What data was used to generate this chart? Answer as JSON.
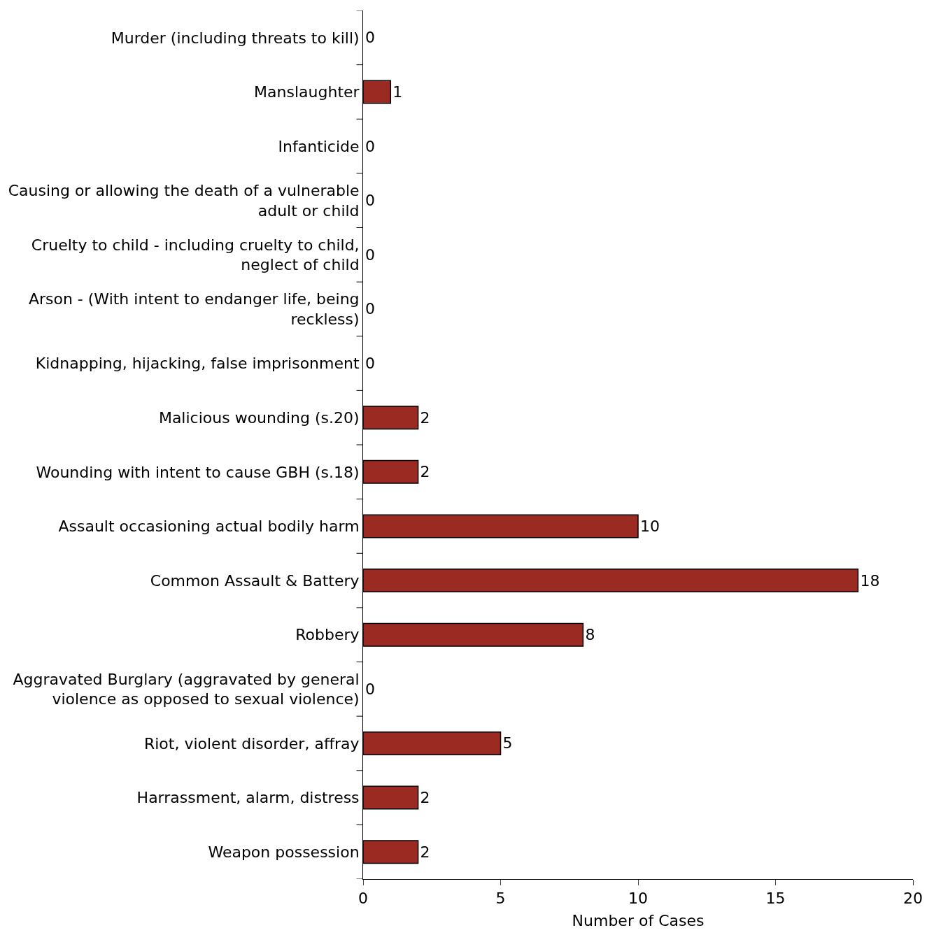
{
  "chart_data": {
    "type": "bar",
    "orientation": "horizontal",
    "xlabel": "Number of Cases",
    "categories": [
      "Murder (including threats to kill)",
      "Manslaughter",
      "Infanticide",
      "Causing or allowing the death of a vulnerable adult or child",
      "Cruelty to child - including cruelty to child, neglect of child",
      "Arson - (With intent to endanger life, being reckless)",
      "Kidnapping, hijacking, false imprisonment",
      "Malicious wounding (s.20)",
      "Wounding with intent to cause GBH (s.18)",
      "Assault occasioning actual bodily harm",
      "Common Assault & Battery",
      "Robbery",
      "Aggravated Burglary (aggravated by general violence as opposed to sexual violence)",
      "Riot, violent disorder, affray",
      "Harrassment, alarm, distress",
      "Weapon possession"
    ],
    "values": [
      0,
      1,
      0,
      0,
      0,
      0,
      0,
      2,
      2,
      10,
      18,
      8,
      0,
      5,
      2,
      2
    ],
    "color": "#9b2b22",
    "xlim": [
      0,
      20
    ],
    "xticks": [
      0,
      5,
      10,
      15,
      20
    ],
    "grid": false,
    "data_labels": true
  }
}
